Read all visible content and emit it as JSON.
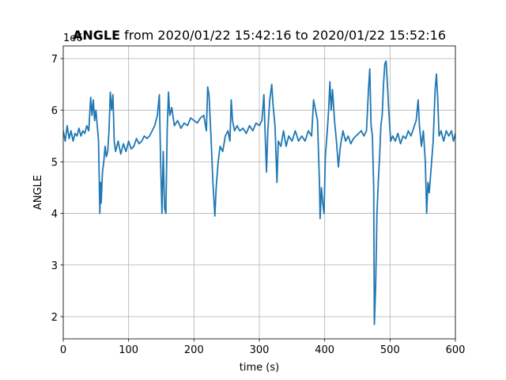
{
  "chart_data": {
    "type": "line",
    "title_bold": "ANGLE",
    "title_rest": "from 2020/01/22 15:42:16 to 2020/01/22 15:52:16",
    "xlabel": "time (s)",
    "ylabel": "ANGLE",
    "y_offset_label": "1e6",
    "color": "#1f77b4",
    "grid": true,
    "xlim": [
      0,
      600
    ],
    "xticks": [
      0,
      100,
      200,
      300,
      400,
      500,
      600
    ],
    "ylim": [
      1.57,
      7.245
    ],
    "yticks": [
      2,
      3,
      4,
      5,
      6,
      7
    ],
    "x": [
      0,
      3,
      6,
      9,
      12,
      15,
      18,
      21,
      24,
      27,
      30,
      33,
      36,
      39,
      42,
      44,
      46,
      48,
      50,
      52,
      54,
      56,
      57,
      58,
      60,
      62,
      64,
      66,
      68,
      70,
      72,
      74,
      76,
      78,
      80,
      84,
      88,
      92,
      96,
      100,
      104,
      108,
      112,
      116,
      120,
      124,
      128,
      132,
      136,
      140,
      144,
      147,
      149,
      151,
      153,
      155,
      157,
      159,
      161,
      163,
      166,
      170,
      175,
      180,
      185,
      190,
      195,
      200,
      205,
      210,
      215,
      219,
      221,
      223,
      226,
      229,
      232,
      234,
      237,
      240,
      244,
      248,
      252,
      255,
      257,
      259,
      262,
      266,
      270,
      275,
      280,
      285,
      290,
      295,
      300,
      304,
      307,
      309,
      311,
      313,
      316,
      319,
      321,
      324,
      327,
      329,
      333,
      337,
      341,
      345,
      350,
      355,
      360,
      365,
      370,
      375,
      380,
      383,
      386,
      389,
      392,
      393,
      395,
      397,
      399,
      401,
      404,
      406,
      408,
      410,
      412,
      415,
      418,
      421,
      424,
      428,
      432,
      436,
      440,
      444,
      448,
      452,
      456,
      460,
      464,
      467,
      469,
      471,
      473,
      475,
      476,
      478,
      480,
      482,
      484,
      486,
      488,
      490,
      492,
      494,
      496,
      498,
      501,
      504,
      508,
      512,
      516,
      520,
      524,
      528,
      532,
      536,
      540,
      543,
      545,
      548,
      551,
      554,
      556,
      558,
      560,
      563,
      566,
      569,
      571,
      573,
      575,
      578,
      582,
      586,
      590,
      594,
      597,
      600
    ],
    "values": [
      5.6,
      5.4,
      5.7,
      5.45,
      5.6,
      5.4,
      5.55,
      5.5,
      5.65,
      5.5,
      5.6,
      5.55,
      5.7,
      5.6,
      6.25,
      5.9,
      6.2,
      5.8,
      6.0,
      5.7,
      5.4,
      4.0,
      4.6,
      4.2,
      4.8,
      5.0,
      5.3,
      5.1,
      5.2,
      5.6,
      6.35,
      6.0,
      6.3,
      5.4,
      5.2,
      5.4,
      5.15,
      5.35,
      5.2,
      5.4,
      5.25,
      5.3,
      5.45,
      5.35,
      5.4,
      5.5,
      5.45,
      5.5,
      5.6,
      5.7,
      5.9,
      6.3,
      5.0,
      4.0,
      5.2,
      4.1,
      4.0,
      5.6,
      6.35,
      5.9,
      6.05,
      5.7,
      5.8,
      5.65,
      5.75,
      5.7,
      5.85,
      5.8,
      5.75,
      5.85,
      5.9,
      5.6,
      6.45,
      6.3,
      5.5,
      4.6,
      3.95,
      4.5,
      5.0,
      5.3,
      5.2,
      5.5,
      5.6,
      5.4,
      6.2,
      5.8,
      5.6,
      5.7,
      5.6,
      5.65,
      5.55,
      5.7,
      5.6,
      5.75,
      5.7,
      5.8,
      6.3,
      5.5,
      4.8,
      5.6,
      6.2,
      6.5,
      6.1,
      5.7,
      4.6,
      5.4,
      5.3,
      5.6,
      5.3,
      5.5,
      5.4,
      5.6,
      5.4,
      5.5,
      5.4,
      5.6,
      5.5,
      6.2,
      6.0,
      5.8,
      4.6,
      3.9,
      4.5,
      4.2,
      4.0,
      5.1,
      5.6,
      6.0,
      6.55,
      6.0,
      6.4,
      5.8,
      5.4,
      4.9,
      5.3,
      5.6,
      5.4,
      5.5,
      5.35,
      5.45,
      5.5,
      5.55,
      5.6,
      5.5,
      5.6,
      6.4,
      6.8,
      5.7,
      5.5,
      4.5,
      1.85,
      2.6,
      4.0,
      4.6,
      5.1,
      5.7,
      5.9,
      6.5,
      6.9,
      6.95,
      6.5,
      6.0,
      5.4,
      5.5,
      5.4,
      5.55,
      5.35,
      5.5,
      5.45,
      5.6,
      5.5,
      5.65,
      5.8,
      6.2,
      5.7,
      5.3,
      5.6,
      5.0,
      4.0,
      4.6,
      4.4,
      4.9,
      5.4,
      6.4,
      6.7,
      6.2,
      5.5,
      5.6,
      5.4,
      5.6,
      5.5,
      5.6,
      5.4,
      5.55
    ]
  }
}
